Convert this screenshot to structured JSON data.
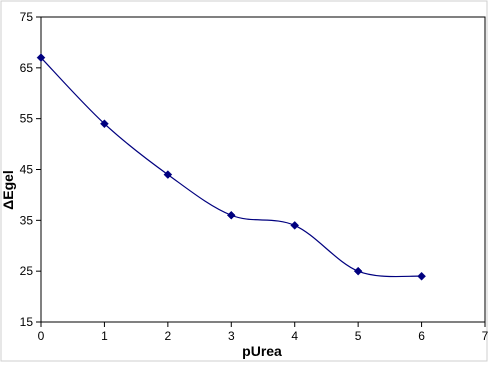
{
  "chart_data": {
    "type": "scatter",
    "title": "",
    "xlabel": "pUrea",
    "ylabel": "ΔEgel",
    "xlim": [
      0,
      7
    ],
    "ylim": [
      15,
      75
    ],
    "x_ticks": [
      "0",
      "1",
      "2",
      "3",
      "4",
      "5",
      "6",
      "7"
    ],
    "y_ticks": [
      "15",
      "25",
      "35",
      "45",
      "55",
      "65",
      "75"
    ],
    "grid": false,
    "legend": "none",
    "series": [
      {
        "x": [
          0,
          1,
          2,
          3,
          4,
          5,
          6
        ],
        "y": [
          67,
          54,
          44,
          36,
          34,
          25,
          24
        ],
        "marker": "diamond",
        "line": "smooth",
        "color": "#00007f"
      }
    ]
  }
}
